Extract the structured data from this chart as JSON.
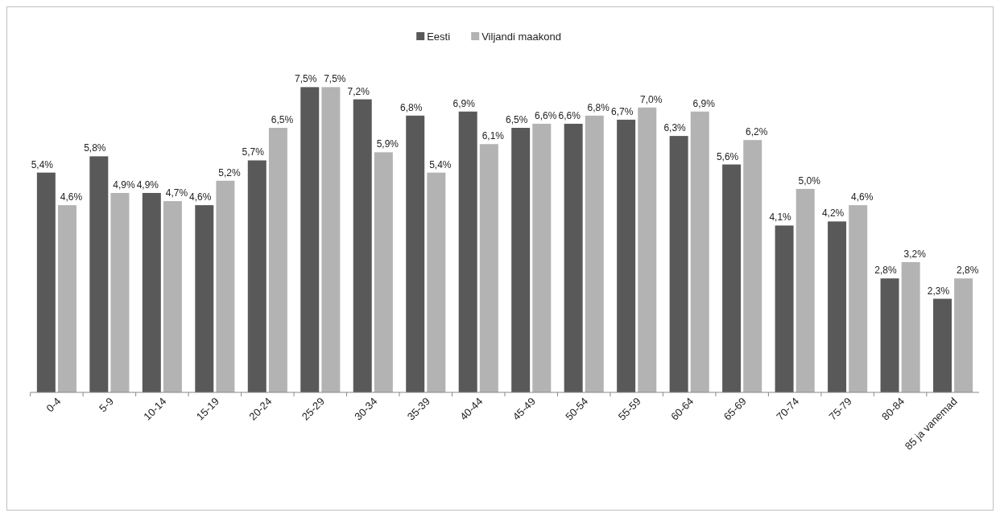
{
  "chart_data": {
    "type": "bar",
    "categories": [
      "0-4",
      "5-9",
      "10-14",
      "15-19",
      "20-24",
      "25-29",
      "30-34",
      "35-39",
      "40-44",
      "45-49",
      "50-54",
      "55-59",
      "60-64",
      "65-69",
      "70-74",
      "75-79",
      "80-84",
      "85 ja vanemad"
    ],
    "series": [
      {
        "name": "Eesti",
        "color": "#595959",
        "values": [
          5.4,
          5.8,
          4.9,
          4.6,
          5.7,
          7.5,
          7.2,
          6.8,
          6.9,
          6.5,
          6.6,
          6.7,
          6.3,
          5.6,
          4.1,
          4.2,
          2.8,
          2.3
        ],
        "value_labels": [
          "5,4%",
          "5,8%",
          "4,9%",
          "4,6%",
          "5,7%",
          "7,5%",
          "7,2%",
          "6,8%",
          "6,9%",
          "6,5%",
          "6,6%",
          "6,7%",
          "6,3%",
          "5,6%",
          "4,1%",
          "4,2%",
          "2,8%",
          "2,3%"
        ]
      },
      {
        "name": "Viljandi maakond",
        "color": "#b3b3b3",
        "values": [
          4.6,
          4.9,
          4.7,
          5.2,
          6.5,
          7.5,
          5.9,
          5.4,
          6.1,
          6.6,
          6.8,
          7.0,
          6.9,
          6.2,
          5.0,
          4.6,
          3.2,
          2.8
        ],
        "value_labels": [
          "4,6%",
          "4,9%",
          "4,7%",
          "5,2%",
          "6,5%",
          "7,5%",
          "5,9%",
          "5,4%",
          "6,1%",
          "6,6%",
          "6,8%",
          "7,0%",
          "6,9%",
          "6,2%",
          "5,0%",
          "4,6%",
          "3,2%",
          "2,8%"
        ]
      }
    ],
    "legend": "top"
  }
}
